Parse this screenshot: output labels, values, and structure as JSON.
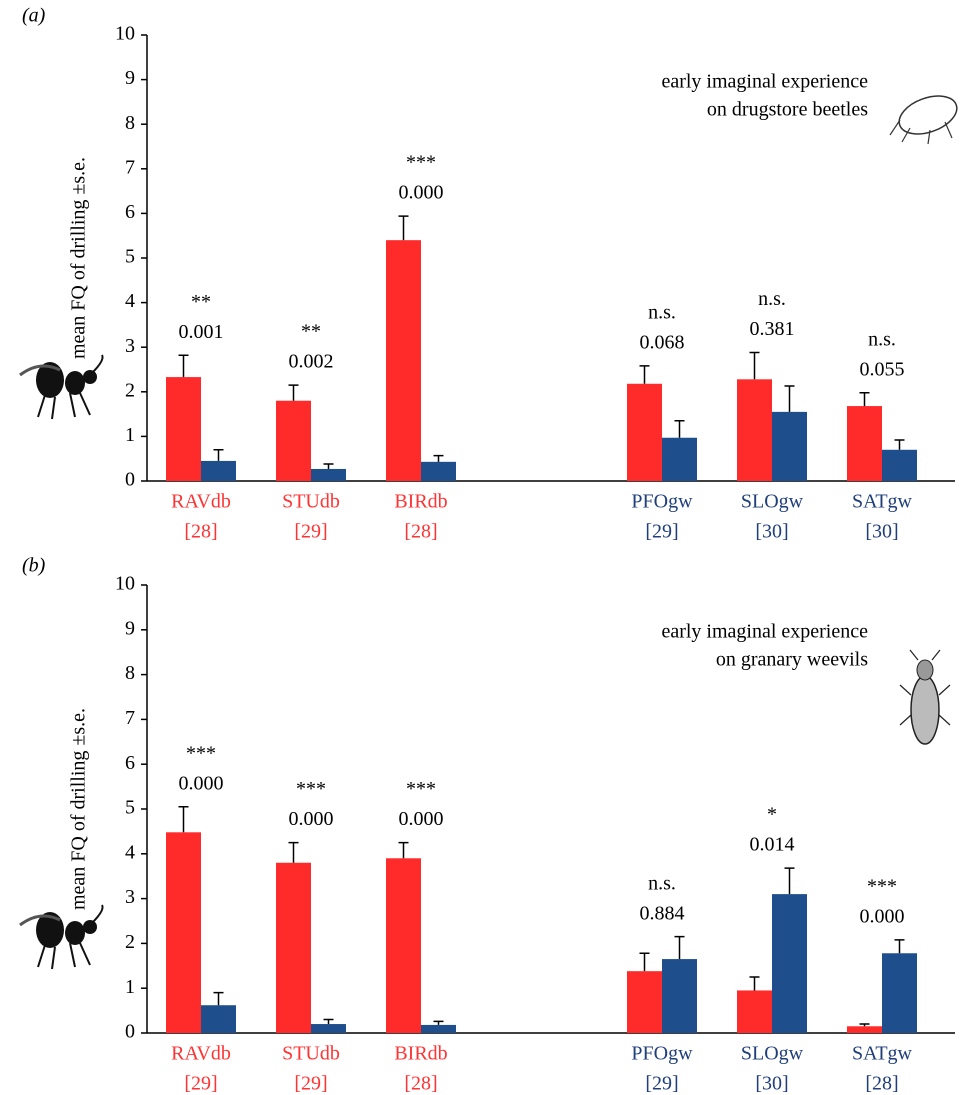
{
  "chart_data": [
    {
      "type": "bar",
      "panel": "(a)",
      "ylabel": "mean FQ of drilling ±s.e.",
      "annotation": [
        "early imaginal experience",
        "on drugstore beetles"
      ],
      "categories": [
        "RAVdb",
        "STUdb",
        "BIRdb",
        "PFOgw",
        "SLOgw",
        "SATgw"
      ],
      "n_labels": [
        "[28]",
        "[29]",
        "[28]",
        "[29]",
        "[30]",
        "[30]"
      ],
      "category_colors": [
        "#ff3333",
        "#ff3333",
        "#ff3333",
        "#1f3e7a",
        "#1f3e7a",
        "#1f3e7a"
      ],
      "significance": [
        "**",
        "**",
        "***",
        "n.s.",
        "n.s.",
        "n.s."
      ],
      "p_values": [
        "0.001",
        "0.002",
        "0.000",
        "0.068",
        "0.381",
        "0.055"
      ],
      "series": [
        {
          "color": "#ff2a2a",
          "values": [
            2.33,
            1.8,
            5.4,
            2.18,
            2.28,
            1.68
          ],
          "errors": [
            0.49,
            0.35,
            0.54,
            0.4,
            0.6,
            0.3
          ]
        },
        {
          "color": "#1f4e8c",
          "values": [
            0.45,
            0.27,
            0.43,
            0.97,
            1.55,
            0.7
          ],
          "errors": [
            0.25,
            0.11,
            0.14,
            0.38,
            0.58,
            0.22
          ]
        }
      ],
      "ylim": [
        0,
        10
      ],
      "yticks": [
        0,
        1,
        2,
        3,
        4,
        5,
        6,
        7,
        8,
        9,
        10
      ]
    },
    {
      "type": "bar",
      "panel": "(b)",
      "ylabel": "mean FQ of drilling ±s.e.",
      "annotation": [
        "early imaginal experience",
        "on granary weevils"
      ],
      "categories": [
        "RAVdb",
        "STUdb",
        "BIRdb",
        "PFOgw",
        "SLOgw",
        "SATgw"
      ],
      "n_labels": [
        "[29]",
        "[29]",
        "[28]",
        "[29]",
        "[30]",
        "[28]"
      ],
      "category_colors": [
        "#ff3333",
        "#ff3333",
        "#ff3333",
        "#1f3e7a",
        "#1f3e7a",
        "#1f3e7a"
      ],
      "significance": [
        "***",
        "***",
        "***",
        "n.s.",
        "*",
        "***"
      ],
      "p_values": [
        "0.000",
        "0.000",
        "0.000",
        "0.884",
        "0.014",
        "0.000"
      ],
      "series": [
        {
          "color": "#ff2a2a",
          "values": [
            4.48,
            3.8,
            3.9,
            1.38,
            0.95,
            0.15
          ],
          "errors": [
            0.57,
            0.45,
            0.35,
            0.4,
            0.3,
            0.05
          ]
        },
        {
          "color": "#1f4e8c",
          "values": [
            0.62,
            0.2,
            0.18,
            1.65,
            3.1,
            1.78
          ],
          "errors": [
            0.28,
            0.1,
            0.08,
            0.5,
            0.58,
            0.3
          ]
        }
      ],
      "ylim": [
        0,
        10
      ],
      "yticks": [
        0,
        1,
        2,
        3,
        4,
        5,
        6,
        7,
        8,
        9,
        10
      ]
    }
  ]
}
